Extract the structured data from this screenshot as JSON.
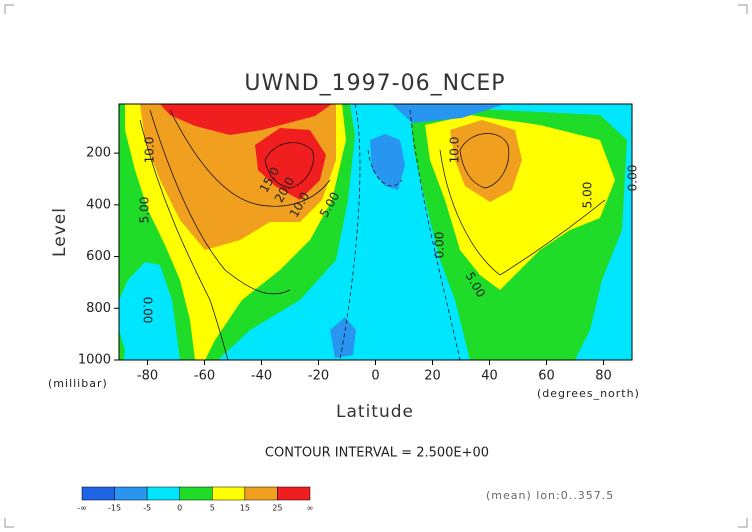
{
  "chart_data": {
    "type": "contour",
    "title": "UWND_1997-06_NCEP",
    "x_label": "Latitude",
    "y_label": "Level",
    "x_unit": "(degrees_north)",
    "y_unit": "(millibar)",
    "xlim": [
      -90,
      90
    ],
    "ylim": [
      1000,
      10
    ],
    "xticks": [
      -80,
      -60,
      -40,
      -20,
      0,
      20,
      40,
      60,
      80
    ],
    "yticks": [
      200,
      400,
      600,
      800,
      1000
    ],
    "contour_interval": "CONTOUR INTERVAL = 2.500E+00",
    "footnote": "(mean) lon:0..357.5",
    "colorbar": {
      "labels": [
        "-∞",
        "-15",
        "-5",
        "0",
        "5",
        "15",
        "25",
        "∞"
      ],
      "colors": [
        "#1e64e6",
        "#2896f0",
        "#00e6ff",
        "#1edc28",
        "#ffff00",
        "#f0a01e",
        "#f01e1e"
      ]
    },
    "contour_labels": [
      "10.0",
      "5.00",
      "0.00",
      "20.0",
      "15.0",
      "10.0",
      "5.00",
      "10.0",
      "0.00",
      "5.00",
      "5.00",
      "0.00"
    ]
  }
}
